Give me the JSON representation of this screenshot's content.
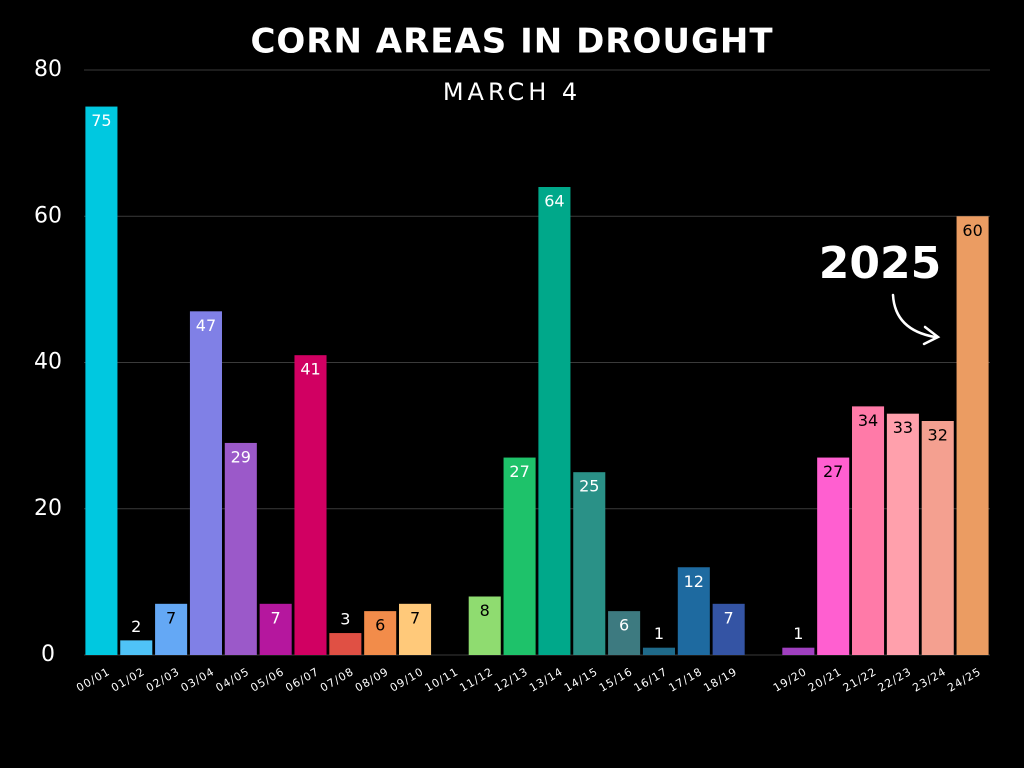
{
  "chart_data": {
    "type": "bar",
    "title": "CORN AREAS IN DROUGHT",
    "subtitle": "MARCH 4",
    "annotation": "2025",
    "categories": [
      "00/01",
      "01/02",
      "02/03",
      "03/04",
      "04/05",
      "05/06",
      "06/07",
      "07/08",
      "08/09",
      "09/10",
      "10/11",
      "11/12",
      "12/13",
      "13/14",
      "14/15",
      "15/16",
      "16/17",
      "17/18",
      "18/19",
      null,
      "19/20",
      "20/21",
      "21/22",
      "22/23",
      "23/24",
      "24/25"
    ],
    "values": [
      75,
      2,
      7,
      47,
      29,
      7,
      41,
      3,
      6,
      7,
      null,
      8,
      27,
      64,
      25,
      6,
      1,
      12,
      7,
      null,
      1,
      27,
      34,
      33,
      32,
      60
    ],
    "colors": [
      "#00c8e0",
      "#4fc3f7",
      "#64a8f5",
      "#8080e6",
      "#9b59c9",
      "#b5179e",
      "#d10062",
      "#e05044",
      "#f28c4a",
      "#ffc97a",
      null,
      "#8fdc70",
      "#1ec26a",
      "#00a88a",
      "#2a9187",
      "#3d7a80",
      "#1f6a8a",
      "#1e6aa0",
      "#3454a4",
      null,
      "#a040c0",
      "#ff5fd0",
      "#ff7aa8",
      "#ffa0ac",
      "#f4a090",
      "#eb9c62"
    ],
    "ylim": [
      0,
      80
    ],
    "yticks": [
      0,
      20,
      40,
      60,
      80
    ],
    "grid": true
  }
}
